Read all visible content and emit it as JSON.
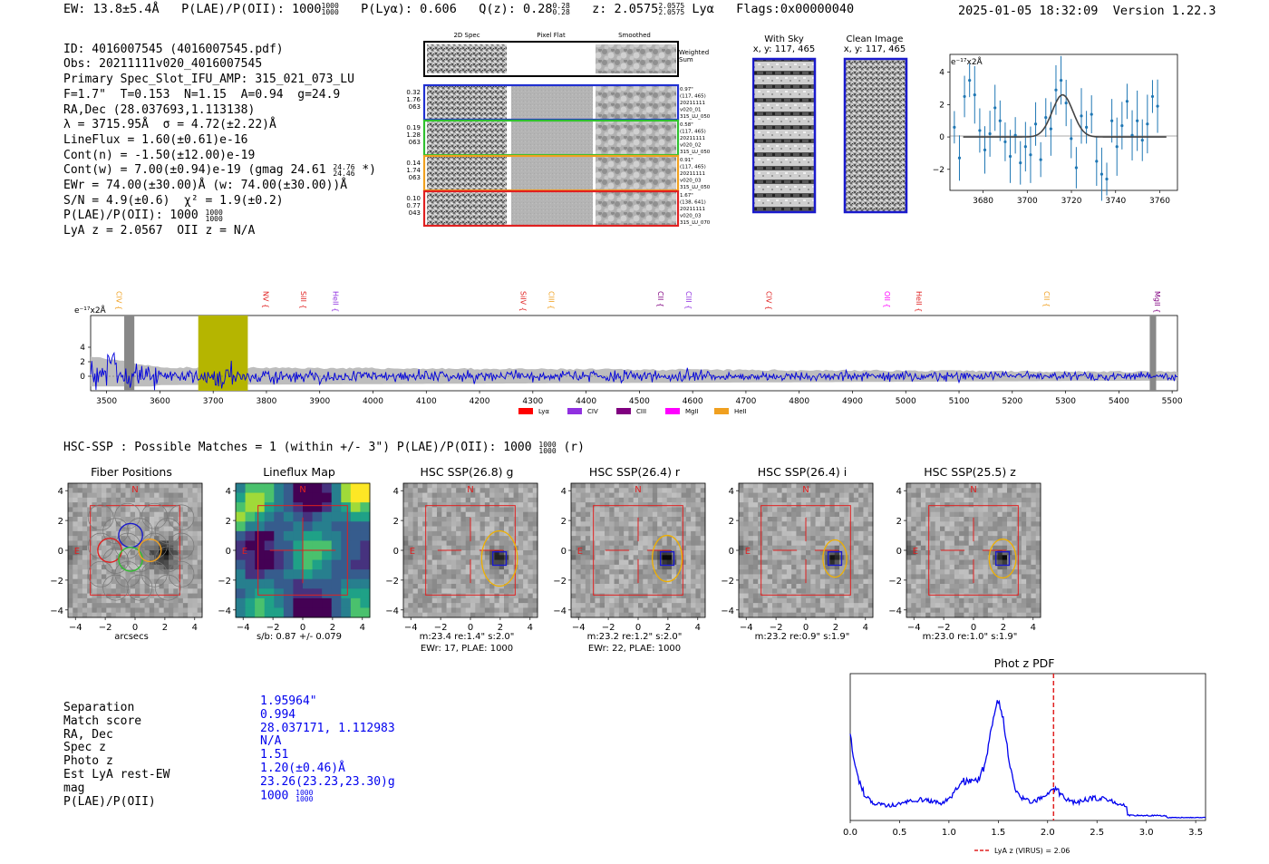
{
  "header": {
    "ew": "EW: 13.8±5.4Å",
    "plae_label": "P(LAE)/P(OII): 1000",
    "plae_sup": "1000",
    "plae_sub": "1000",
    "plya": "P(Lyα): 0.606",
    "qz": "Q(z): 0.28",
    "qz_sup": "0.28",
    "qz_sub": "0.28",
    "z": "z: 2.0575",
    "z_sup": "2.0575",
    "z_sub": "2.0575",
    "z_line": "Lyα",
    "flags": "Flags:0x00000040",
    "datetime": "2025-01-05 18:32:09",
    "version": "Version 1.22.3"
  },
  "info": {
    "id": "ID: 4016007545 (4016007545.pdf)",
    "obs": "Obs: 20211111v020_4016007545",
    "primary": "Primary Spec_Slot_IFU_AMP: 315_021_073_LU",
    "params": "F=1.7\"  T=0.153  N=1.15  A=0.94  g=24.9",
    "radec": "RA,Dec (28.037693,1.113138)",
    "lambda": "λ = 3715.95Å  σ = 4.72(±2.22)Å",
    "lineflux": "LineFlux = 1.60(±0.61)e-16",
    "contn": "Cont(n) = -1.50(±12.00)e-19",
    "contw": "Cont(w) = 7.00(±0.94)e-19 (gmag 24.61",
    "contw_sup": "24.76",
    "contw_sub": "24.46",
    "contw_end": "*)",
    "ewr": "EWr = 74.00(±30.00)Å (w: 74.00(±30.00))Å",
    "sn": "S/N = 4.9(±0.6)  χ² = 1.9(±0.2)",
    "plae": "P(LAE)/P(OII): 1000",
    "plae_sup": "1000",
    "plae_sub": "1000",
    "lyaz": "LyA z = 2.0567  OII z = N/A"
  },
  "cutouts": {
    "col_2d": "2D Spec",
    "col_flat": "Pixel Flat",
    "col_smooth": "Smoothed",
    "weighted": "Weighted\nSum",
    "rows": [
      {
        "left": "0.32\n1.76\n063",
        "right": "0.97\"\n(117, 465)\n20211111\nv020_01\n315_LU_050",
        "color": "#2030d0"
      },
      {
        "left": "0.19\n1.28\n063",
        "right": "0.58\"\n(117, 465)\n20211111\nv020_02\n315_LU_050",
        "color": "#30c030"
      },
      {
        "left": "0.14\n1.74\n063",
        "right": "0.91\"\n(117, 465)\n20211111\nv020_03\n315_LU_050",
        "color": "#f0a020"
      },
      {
        "left": "0.10\n0.77\n043",
        "right": "1.67\"\n(138, 641)\n20211111\nv020_03\n315_LU_070",
        "color": "#e02020"
      }
    ]
  },
  "sky": {
    "with_sky": "With Sky",
    "with_sky_xy": "x, y: 117, 465",
    "clean": "Clean Image",
    "clean_xy": "x, y: 117, 465"
  },
  "zoom_plot": {
    "unit": "e⁻¹⁷x2Å",
    "yticks": [
      "4",
      "2",
      "0",
      "−2"
    ],
    "xticks": [
      "3680",
      "3700",
      "3720",
      "3740",
      "3760"
    ]
  },
  "full_spec": {
    "unit": "e⁻¹⁷x2Å",
    "yticks": [
      "4",
      "2",
      "0"
    ],
    "xticks": [
      "3500",
      "3600",
      "3700",
      "3800",
      "3900",
      "4000",
      "4100",
      "4200",
      "4300",
      "4400",
      "4500",
      "4600",
      "4700",
      "4800",
      "4900",
      "5000",
      "5100",
      "5200",
      "5300",
      "5400",
      "5500"
    ],
    "lines": [
      {
        "name": "CIV",
        "wave": 3513,
        "color": "#f0a020"
      },
      {
        "name": "NV",
        "wave": 3789,
        "color": "#e02020"
      },
      {
        "name": "SiII",
        "wave": 3860,
        "color": "#e02020"
      },
      {
        "name": "HeII",
        "wave": 3920,
        "color": "#9030e0"
      },
      {
        "name": "SiIV",
        "wave": 4272,
        "color": "#e02020"
      },
      {
        "name": "CIII",
        "wave": 4325,
        "color": "#f0a020"
      },
      {
        "name": "CII",
        "wave": 4530,
        "color": "#800080"
      },
      {
        "name": "CIII",
        "wave": 4583,
        "color": "#9030e0"
      },
      {
        "name": "CIV",
        "wave": 4733,
        "color": "#e02020"
      },
      {
        "name": "OII",
        "wave": 4955,
        "color": "#ff00ff"
      },
      {
        "name": "HeII",
        "wave": 5015,
        "color": "#e02020"
      },
      {
        "name": "CII",
        "wave": 5255,
        "color": "#f0a020"
      },
      {
        "name": "MgII",
        "wave": 5462,
        "color": "#800080"
      }
    ],
    "legend": [
      {
        "name": "Lyα",
        "color": "#ff0000"
      },
      {
        "name": "CIV",
        "color": "#9030e0"
      },
      {
        "name": "CIII",
        "color": "#800080"
      },
      {
        "name": "MgII",
        "color": "#ff00ff"
      },
      {
        "name": "HeII",
        "color": "#f0a020"
      }
    ]
  },
  "hsc": {
    "summary": "HSC-SSP : Possible Matches = 1 (within +/- 3\")  P(LAE)/P(OII): 1000",
    "summary_sup": "1000",
    "summary_sub": "1000",
    "summary_end": "(r)",
    "panels": [
      {
        "title": "Fiber Positions",
        "cap1": "arcsecs",
        "cap2": ""
      },
      {
        "title": "Lineflux Map",
        "cap1": "s/b: 0.87 +/- 0.079",
        "cap2": ""
      },
      {
        "title": "HSC SSP(26.8) g",
        "cap1": "m:23.4  re:1.4\"  s:2.0\"",
        "cap2": "EWr: 17, PLAE: 1000"
      },
      {
        "title": "HSC SSP(26.4) r",
        "cap1": "m:23.2  re:1.2\"  s:2.0\"",
        "cap2": "EWr: 22, PLAE: 1000"
      },
      {
        "title": "HSC SSP(26.4) i",
        "cap1": "m:23.2  re:0.9\"  s:1.9\"",
        "cap2": ""
      },
      {
        "title": "HSC SSP(25.5) z",
        "cap1": "m:23.0  re:1.0\"  s:1.9\"",
        "cap2": ""
      }
    ],
    "ticks": [
      "−4",
      "−2",
      "0",
      "2",
      "4"
    ],
    "yticks": [
      "4",
      "2",
      "0",
      "−2",
      "−4"
    ],
    "north": "N",
    "east": "E"
  },
  "match": {
    "rows": [
      {
        "label": "Separation",
        "value": "1.95964\""
      },
      {
        "label": "Match score",
        "value": "0.994"
      },
      {
        "label": "RA, Dec",
        "value": "28.037171, 1.112983"
      },
      {
        "label": "Spec z",
        "value": "N/A"
      },
      {
        "label": "Photo z",
        "value": "1.51"
      },
      {
        "label": "Est LyA rest-EW",
        "value": "1.20(±0.46)Å"
      },
      {
        "label": "mag",
        "value": "23.26(23.23,23.30)g"
      },
      {
        "label": "P(LAE)/P(OII)",
        "value": "1000"
      }
    ],
    "plae_sup": "1000",
    "plae_sub": "1000"
  },
  "photoz": {
    "title": "Phot z PDF",
    "xticks": [
      "0.0",
      "0.5",
      "1.0",
      "1.5",
      "2.0",
      "2.5",
      "3.0",
      "3.5"
    ],
    "legend": "LyA z (VIRUS) = 2.06",
    "lya_z": 2.06,
    "xmax": 3.6
  },
  "colors": {
    "spectrum": "#0000dd",
    "noise": "#bbbbbb",
    "zoom_points": "#1f77b4",
    "fit": "#444444",
    "red_box": "#e02020",
    "blue_box": "#1a1acc"
  }
}
